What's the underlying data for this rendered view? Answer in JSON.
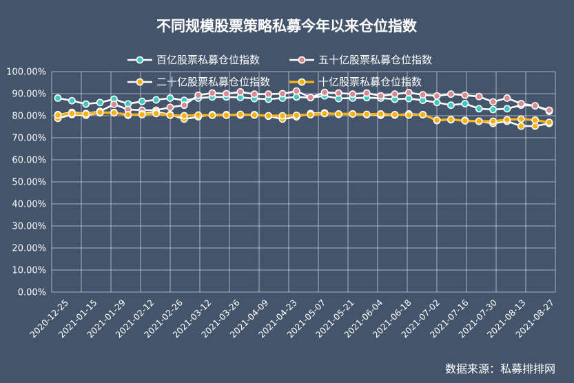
{
  "chart_data": {
    "type": "line",
    "title": "不同规模股票策略私募今年以来仓位指数",
    "source": "数据来源：私募排排网",
    "ylim": [
      0,
      100
    ],
    "y_ticks": [
      "0.00%",
      "10.00%",
      "20.00%",
      "30.00%",
      "40.00%",
      "50.00%",
      "60.00%",
      "70.00%",
      "80.00%",
      "90.00%",
      "100.00%"
    ],
    "grid": true,
    "legend_position": "top",
    "x_tick_labels": [
      "2020-12-25",
      "2021-01-15",
      "2021-01-29",
      "2021-02-12",
      "2021-02-26",
      "2021-03-12",
      "2021-03-26",
      "2021-04-09",
      "2021-04-23",
      "2021-05-07",
      "2021-05-21",
      "2021-06-04",
      "2021-06-18",
      "2021-07-02",
      "2021-07-16",
      "2021-07-30",
      "2021-08-13",
      "2021-08-27"
    ],
    "x": [
      "2020-12-25",
      "2021-01-01",
      "2021-01-08",
      "2021-01-15",
      "2021-01-22",
      "2021-01-29",
      "2021-02-05",
      "2021-02-12",
      "2021-02-19",
      "2021-02-26",
      "2021-03-05",
      "2021-03-12",
      "2021-03-19",
      "2021-03-26",
      "2021-04-02",
      "2021-04-09",
      "2021-04-16",
      "2021-04-23",
      "2021-04-30",
      "2021-05-07",
      "2021-05-14",
      "2021-05-21",
      "2021-05-28",
      "2021-06-04",
      "2021-06-11",
      "2021-06-18",
      "2021-06-25",
      "2021-07-02",
      "2021-07-09",
      "2021-07-16",
      "2021-07-23",
      "2021-07-30",
      "2021-08-06",
      "2021-08-13",
      "2021-08-20",
      "2021-08-27"
    ],
    "series": [
      {
        "name": "百亿股票私募仓位指数",
        "color": "#3ec9c0",
        "line_color": "#ffffff",
        "values": [
          88.0,
          86.8,
          85.3,
          86.0,
          87.5,
          85.4,
          86.5,
          87.2,
          88.0,
          87.0,
          88.0,
          88.5,
          88.5,
          88.3,
          87.8,
          87.5,
          88.0,
          88.5,
          88.2,
          89.0,
          87.8,
          88.0,
          88.2,
          88.0,
          87.5,
          87.8,
          87.0,
          86.0,
          84.8,
          85.5,
          83.2,
          82.8,
          83.2,
          84.8,
          84.5,
          82.0
        ]
      },
      {
        "name": "五十亿股票私募仓位指数",
        "color": "#d9888f",
        "line_color": "#ffffff",
        "values": [
          80.5,
          81.5,
          81.0,
          82.0,
          85.2,
          82.8,
          82.5,
          82.5,
          83.8,
          84.8,
          89.3,
          90.3,
          90.0,
          90.8,
          89.8,
          89.8,
          90.0,
          91.2,
          88.3,
          90.6,
          90.3,
          89.8,
          90.3,
          89.0,
          89.8,
          90.5,
          89.5,
          89.0,
          89.8,
          89.3,
          88.7,
          86.3,
          88.0,
          85.5,
          84.5,
          82.5
        ]
      },
      {
        "name": "二十亿股票私募仓位指数",
        "color": "#f6b217",
        "line_color": "#ffffff",
        "values": [
          78.8,
          80.5,
          80.2,
          81.3,
          81.5,
          80.2,
          80.8,
          81.8,
          80.5,
          78.5,
          79.5,
          80.5,
          80.5,
          80.3,
          80.5,
          79.8,
          78.5,
          79.5,
          81.0,
          81.3,
          80.6,
          80.8,
          80.5,
          80.2,
          80.3,
          80.8,
          80.5,
          77.8,
          78.2,
          77.9,
          77.5,
          76.5,
          77.5,
          75.3,
          75.3,
          76.5
        ]
      },
      {
        "name": "十亿股票私募仓位指数",
        "color": "#f6b217",
        "line_color": "#f6b217",
        "values": [
          80.3,
          81.0,
          80.8,
          81.5,
          81.3,
          80.5,
          80.5,
          81.0,
          80.2,
          80.0,
          80.3,
          80.2,
          80.2,
          80.6,
          80.3,
          80.0,
          80.0,
          80.2,
          80.5,
          81.0,
          80.8,
          80.8,
          80.6,
          80.8,
          80.5,
          80.3,
          80.5,
          78.0,
          78.3,
          77.7,
          77.5,
          77.5,
          78.2,
          78.5,
          78.0,
          77.0
        ]
      }
    ]
  }
}
